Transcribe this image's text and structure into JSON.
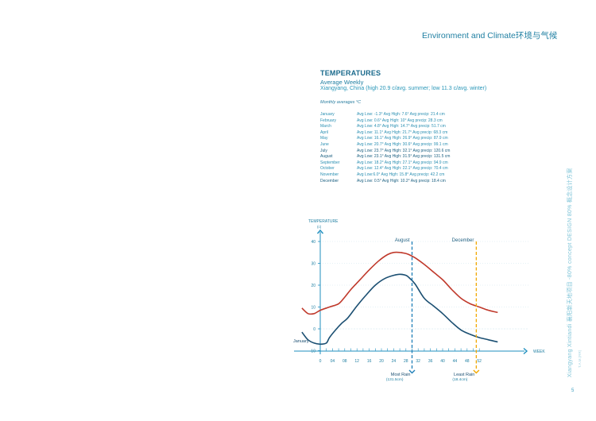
{
  "header": {
    "title": "Environment and Climate环境与气候"
  },
  "temperatures": {
    "title": "TEMPERATURES",
    "subtitle": "Average Weekly",
    "location": "Xiangyang, China (high 20.9 c/avg. summer; low 11.3 c/avg. winter)",
    "monthly_label": "Monthly averages °C",
    "rows": [
      {
        "month": "January",
        "details": "Avg Low: -1.3° Avg High: 7.6° Avg precip: 21.4 cm"
      },
      {
        "month": "February",
        "details": "Avg Low: 0.6° Avg High: 10° Avg precip: 28.3 cm"
      },
      {
        "month": "March",
        "details": "Avg Low: 4.8° Avg High: 14.7° Avg precip: 51.7 cm"
      },
      {
        "month": "April",
        "details": "Avg Low: 11.1° Avg High: 21.7° Avg precip: 68.3 cm"
      },
      {
        "month": "May",
        "details": "Avg Low: 16.1° Avg High: 26.9° Avg precip: 87.9 cm"
      },
      {
        "month": "June",
        "details": "Avg Low: 20.7° Avg High: 30.6° Avg precip: 99.1 cm"
      },
      {
        "month": "July",
        "details": "Avg Low: 23.7° Avg High: 32.1° Avg precip: 120.6 cm"
      },
      {
        "month": "August",
        "details": "Avg Low: 23.1° Avg High: 31.5° Avg precip: 131.5 cm"
      },
      {
        "month": "September",
        "details": "Avg Low: 18.2° Avg High: 27.1° Avg precip: 94.9 cm"
      },
      {
        "month": "October",
        "details": "Avg Low: 12.4° Avg High: 22.1° Avg precip: 70.4 cm"
      },
      {
        "month": "November",
        "details": "Avg Low:6.0° Avg High: 15.8° Avg precip: 42.2 cm"
      },
      {
        "month": "December",
        "details": "Avg Low: 0.5° Avg High: 10.2° Avg precip: 18.4 cm"
      }
    ]
  },
  "side": {
    "text": "Xiangyang Xintiandi 襄阳新天地项目 -80% concept DESIGN 80% 概念设计方案",
    "sub": "T.A.M.(RR)"
  },
  "page_number": "5",
  "colors": {
    "high": "#c0392b",
    "low": "#1b4f72",
    "accent": "#1f8fbf",
    "marker_august": "#1f7fb8",
    "marker_december": "#f2a900"
  },
  "chart_data": {
    "type": "line",
    "ylabel": "TEMPERATURE",
    "yunit": "(c)",
    "xlabel": "WEEK",
    "xlim": [
      -6,
      58
    ],
    "ylim": [
      -12,
      44
    ],
    "yticks": [
      -10,
      0,
      10,
      20,
      30,
      40
    ],
    "xticks": [
      "0",
      "04",
      "08",
      "12",
      "16",
      "20",
      "24",
      "28",
      "32",
      "36",
      "40",
      "44",
      "48",
      "52"
    ],
    "xtick_values": [
      0,
      4,
      8,
      12,
      16,
      20,
      24,
      28,
      32,
      36,
      40,
      44,
      48,
      52
    ],
    "series": [
      {
        "name": "high",
        "color": "#c0392b",
        "x": [
          -6,
          -4,
          -2,
          0,
          3,
          6,
          8,
          10,
          13,
          16,
          19,
          22,
          24,
          26,
          28,
          29,
          31,
          34,
          37,
          40,
          43,
          46,
          49,
          52,
          55,
          58
        ],
        "y": [
          9.5,
          7,
          7,
          8.5,
          10,
          11.5,
          14.5,
          18,
          22.5,
          27,
          31,
          34,
          35,
          35,
          34.5,
          34,
          32.5,
          29.5,
          26,
          22.5,
          18,
          14,
          11.5,
          10,
          8.5,
          7.5
        ]
      },
      {
        "name": "low",
        "color": "#1b4f72",
        "x": [
          -6,
          -4,
          -2,
          0,
          2,
          3,
          5,
          7,
          9,
          12,
          15,
          18,
          21,
          24,
          26,
          28,
          29,
          31,
          34,
          37,
          40,
          43,
          46,
          49,
          52,
          55,
          58
        ],
        "y": [
          -1.5,
          -5,
          -6.5,
          -7,
          -6.5,
          -4,
          -0.5,
          2.5,
          5,
          10.5,
          15.5,
          20,
          23,
          24.5,
          25,
          24.5,
          23.5,
          20.5,
          14,
          10.5,
          7,
          3,
          -0.5,
          -2.5,
          -4,
          -5,
          -6
        ]
      }
    ],
    "markers": [
      {
        "label": "August",
        "x": 30,
        "color": "#1f7fb8",
        "bottom_label": "Most Rain",
        "bottom_sub": "(131.5cm)"
      },
      {
        "label": "December",
        "x": 51,
        "color": "#f2a900",
        "bottom_label": "Least Rain",
        "bottom_sub": "(18.4cm)"
      }
    ],
    "annotations": [
      {
        "text": "January"
      }
    ]
  }
}
